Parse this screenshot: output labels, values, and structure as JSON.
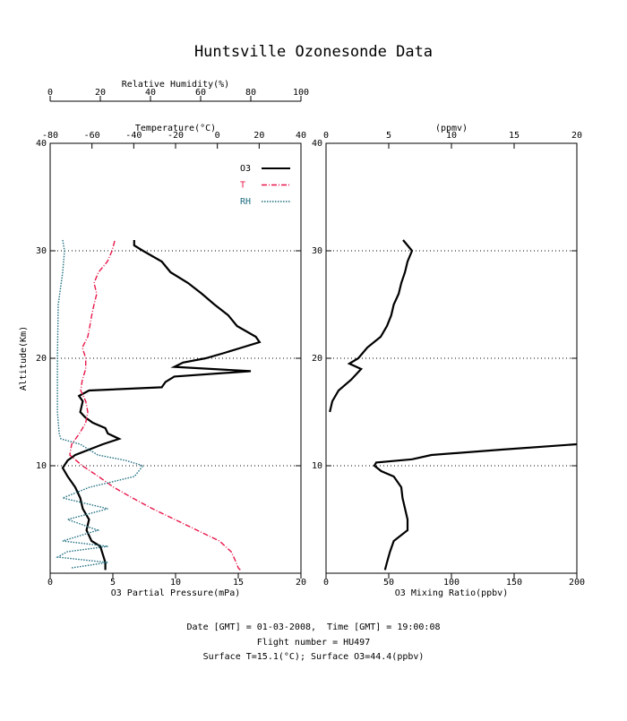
{
  "title": "Huntsville Ozonesonde Data",
  "footer": [
    "Date [GMT] = 01-03-2008,  Time [GMT] = 19:00:08",
    "Flight number = HU497",
    "Surface T=15.1(°C); Surface O3=44.4(ppbv)"
  ],
  "chart_data": [
    {
      "type": "line",
      "ylabel": "Altitude(Km)",
      "ylim": [
        0,
        40
      ],
      "yticks": [
        10,
        20,
        30,
        40
      ],
      "grid": true,
      "legend": "upper right",
      "xlabel": "O3 Partial Pressure(mPa)",
      "xlim": [
        0,
        20
      ],
      "xticks": [
        0,
        5,
        10,
        15,
        20
      ],
      "x2label": "Temperature(°C)",
      "x2lim": [
        -80,
        40
      ],
      "x2ticks": [
        -80,
        -60,
        -40,
        -20,
        0,
        20,
        40
      ],
      "x3label": "Relative Humidity(%)",
      "x3lim": [
        0,
        100
      ],
      "x3ticks": [
        0,
        20,
        40,
        60,
        80,
        100
      ],
      "series": [
        {
          "name": "O3",
          "color": "#000000",
          "style": "solid",
          "axis": "x",
          "y": [
            0.3,
            1,
            2.5,
            3,
            4,
            5,
            6,
            7,
            8,
            9,
            9.8,
            10.5,
            11,
            11.5,
            12,
            12.5,
            13,
            13.5,
            14,
            14.5,
            15,
            16,
            16.5,
            17,
            17.3,
            17.8,
            18.3,
            18.8,
            19.2,
            19.6,
            20,
            20.5,
            21,
            21.5,
            22,
            23,
            24,
            25,
            26,
            27,
            28,
            29,
            30,
            30.5,
            31
          ],
          "x": [
            4.4,
            4.4,
            4.0,
            3.3,
            2.9,
            3.1,
            2.6,
            2.4,
            2.0,
            1.4,
            1.0,
            1.4,
            2.0,
            3.1,
            4.2,
            5.5,
            4.6,
            4.4,
            3.4,
            2.8,
            2.4,
            2.6,
            2.3,
            3.1,
            8.9,
            9.2,
            9.9,
            16,
            9.9,
            10.6,
            12.4,
            13.9,
            15.3,
            16.7,
            16.4,
            14.9,
            14.2,
            13.1,
            12.1,
            11.0,
            9.6,
            8.9,
            7.4,
            6.7,
            6.7
          ]
        },
        {
          "name": "T",
          "color": "#e8174a",
          "style": "dashdot",
          "axis": "x2",
          "y": [
            0.3,
            0.5,
            1,
            2,
            3,
            4,
            5,
            6,
            7,
            8,
            9,
            10,
            11,
            12,
            13,
            14,
            15,
            16,
            17,
            18,
            19,
            20,
            21,
            22,
            23,
            24,
            25,
            26,
            27,
            28,
            29,
            30,
            31
          ],
          "x": [
            11,
            10,
            9,
            6.6,
            1,
            -9.7,
            -20.4,
            -31,
            -40.6,
            -49.6,
            -56.9,
            -64.6,
            -70.6,
            -69.7,
            -66,
            -63,
            -62,
            -63,
            -65.4,
            -64.6,
            -63,
            -63,
            -64.6,
            -62,
            -61,
            -60.1,
            -59,
            -57.7,
            -59,
            -56.9,
            -52.6,
            -50.4,
            -49
          ]
        },
        {
          "name": "RH",
          "color": "#1f6e80",
          "style": "dotted",
          "axis": "x3",
          "y": [
            0.5,
            1,
            1.5,
            2,
            2.5,
            3,
            4,
            5,
            6,
            7,
            8,
            9,
            10,
            10.5,
            11,
            12,
            12.5,
            13,
            15,
            20,
            25,
            28,
            30,
            31
          ],
          "x": [
            8.6,
            22.9,
            3,
            6.8,
            23,
            5,
            19,
            7,
            23,
            5,
            15.7,
            33.6,
            37,
            30,
            19,
            12,
            4.3,
            3.6,
            2.9,
            2.9,
            3.2,
            5,
            5.7,
            5
          ]
        }
      ]
    },
    {
      "type": "line",
      "ylim": [
        0,
        40
      ],
      "yticks": [
        10,
        20,
        30,
        40
      ],
      "grid": true,
      "xlabel": "O3 Mixing Ratio(ppbv)",
      "xlim": [
        0,
        200
      ],
      "xticks": [
        0,
        50,
        100,
        150,
        200
      ],
      "x2label": "(ppmv)",
      "x2lim": [
        0,
        20
      ],
      "x2ticks": [
        0,
        5,
        10,
        15,
        20
      ],
      "series": [
        {
          "color": "#000000",
          "style": "solid",
          "axis": "x",
          "y": [
            0.3,
            1,
            2,
            3,
            4,
            5,
            6,
            7,
            8,
            9,
            9.5,
            10,
            10.3,
            10.6,
            11,
            11.5,
            12,
            13,
            15,
            16,
            17,
            18,
            19,
            19.5,
            20,
            21,
            22,
            23,
            24,
            25,
            26,
            27,
            28,
            29,
            30,
            30.5,
            31
          ],
          "x": [
            47,
            48.6,
            51,
            54,
            65,
            65,
            63,
            61,
            60,
            54,
            44,
            38.6,
            40,
            68.6,
            84,
            140,
            200,
            null,
            3,
            5,
            10,
            20,
            28,
            18.6,
            25.7,
            32.9,
            43.6,
            48.6,
            52,
            54,
            57.9,
            60,
            62.9,
            65,
            68.6,
            65,
            61.4
          ]
        }
      ]
    }
  ]
}
